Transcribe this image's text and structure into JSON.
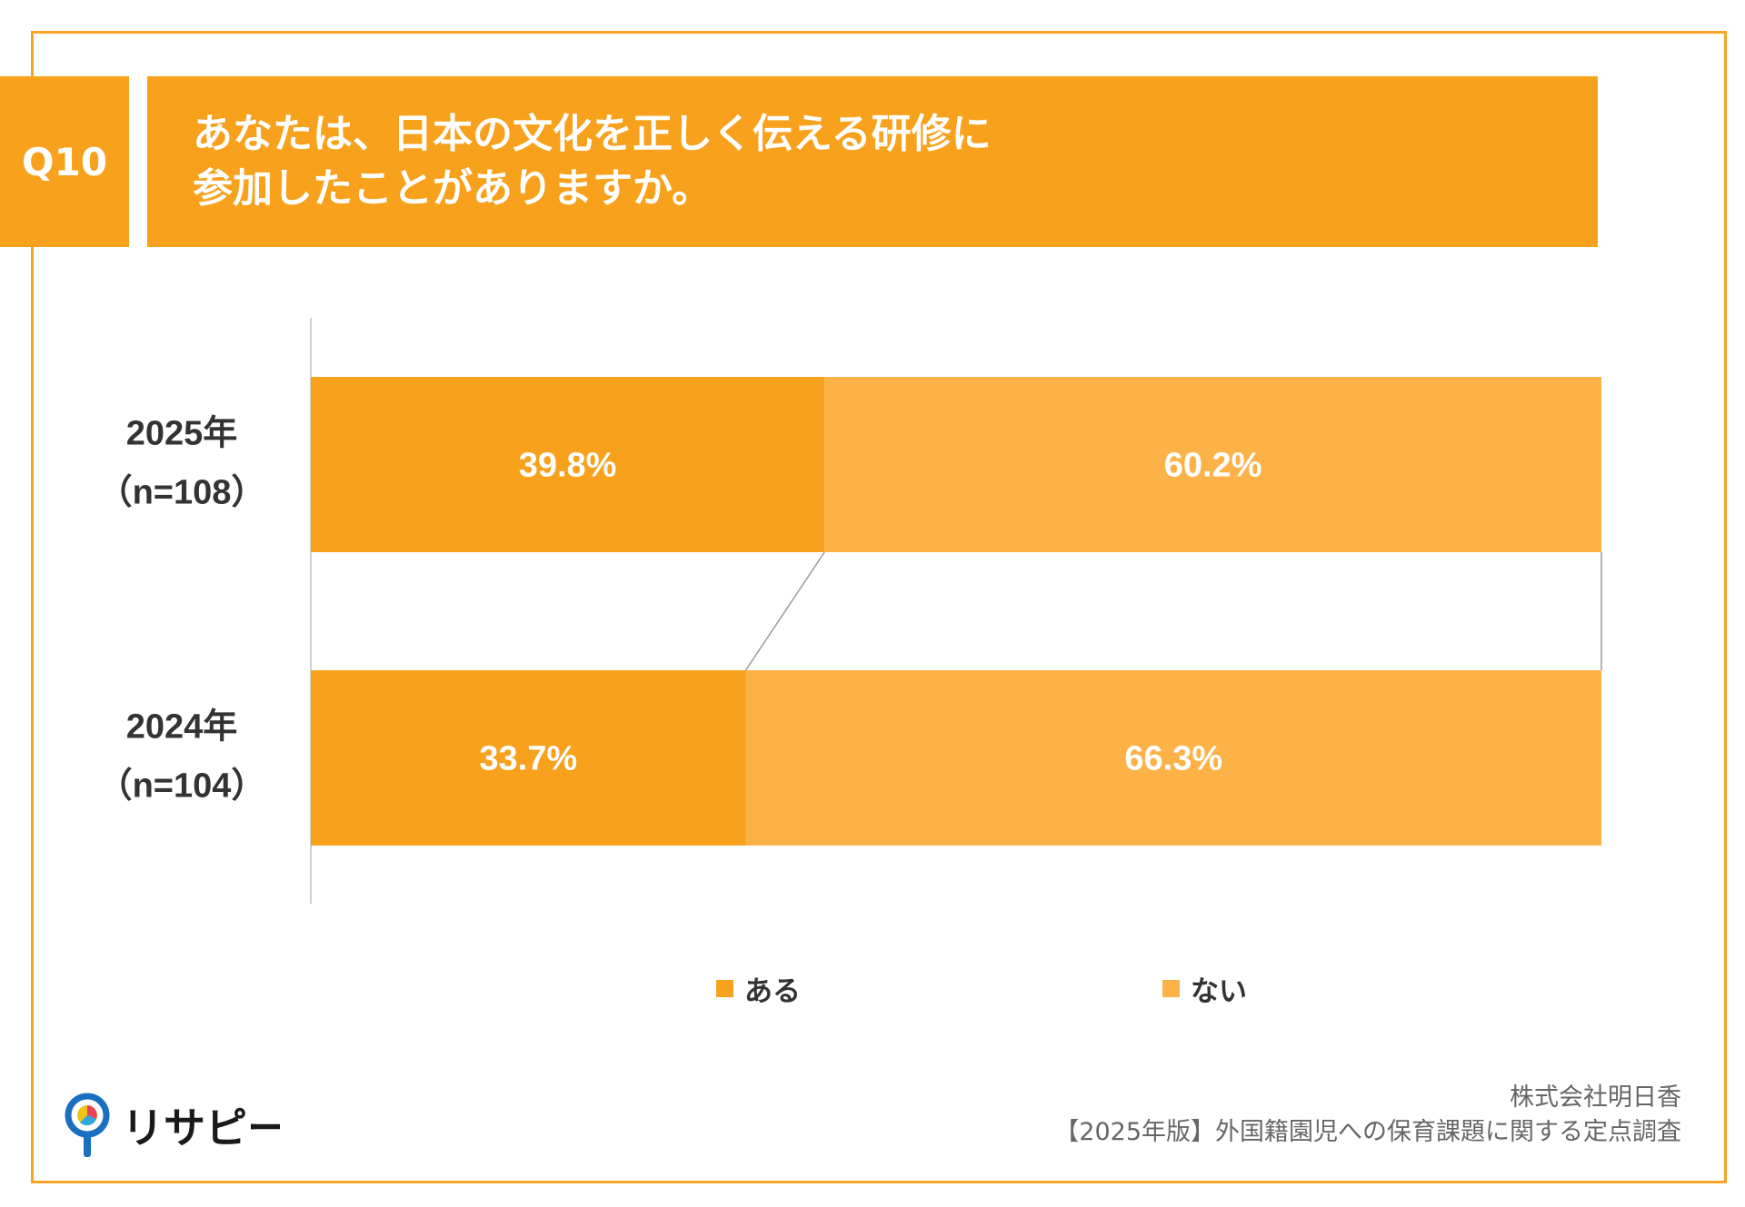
{
  "question": {
    "number": "Q10",
    "line1": "あなたは、日本の文化を正しく伝える研修に",
    "line2": "参加したことがありますか。"
  },
  "colors": {
    "aru": "#f7a11c",
    "nai": "#fdb247",
    "frame": "#f7a325"
  },
  "chart_data": {
    "type": "bar",
    "orientation": "horizontal",
    "stacked": "100%",
    "categories": [
      {
        "year": "2025年",
        "n": "（n=108）"
      },
      {
        "year": "2024年",
        "n": "（n=104）"
      }
    ],
    "series": [
      {
        "name": "ある",
        "values": [
          39.8,
          33.7
        ],
        "labels": [
          "39.8%",
          "33.7%"
        ]
      },
      {
        "name": "ない",
        "values": [
          60.2,
          66.3
        ],
        "labels": [
          "60.2%",
          "66.3%"
        ]
      }
    ],
    "xlim": [
      0,
      100
    ],
    "legend": "bottom"
  },
  "footer": {
    "logo_text": "リサピー",
    "company": "株式会社明日香",
    "survey": "【2025年版】外国籍園児への保育課題に関する定点調査"
  }
}
